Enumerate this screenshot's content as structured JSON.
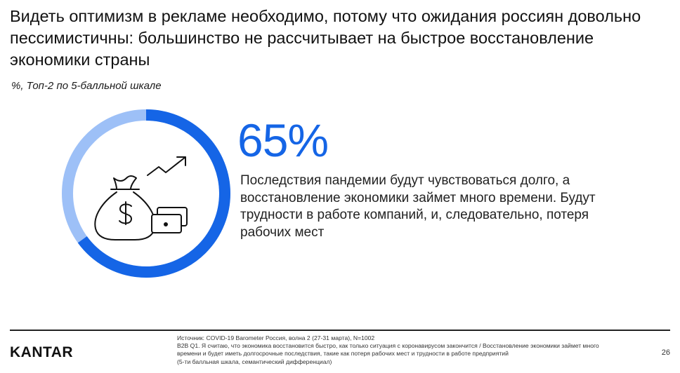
{
  "slide": {
    "title": "Видеть оптимизм в рекламе необходимо, потому что ожидания россиян довольно пессимистичны: большинство не рассчитывает на быстрое восстановление экономики страны",
    "subtitle": "%, Топ-2 по 5-балльной шкале",
    "stat": {
      "percent_label": "65%",
      "value": 65,
      "description": "Последствия пандемии будут чувствоваться долго, а восстановление экономики займет много времени. Будут трудности в работе компаний, и, следовательно, потеря рабочих мест"
    },
    "icon": "money-bag-with-growth-arrow-and-banknotes-icon"
  },
  "colors": {
    "accent": "#1565e6",
    "ring_remainder": "#9dc0f7",
    "icon_stroke": "#111111"
  },
  "footer": {
    "logo": "KANTAR",
    "source_lines": [
      "Источник: COVID-19 Barometer Россия, волна 2 (27-31 марта), N=1002",
      "B2B Q1. Я считаю, что экономика восстановится быстро, как только ситуация с коронавирусом закончится / Восстановление экономики займет много",
      "времени и будет иметь долгосрочные последствия, такие как потеря рабочих мест и трудности в работе предприятий",
      "(5-ти балльная шкала, семантический дифференциал)"
    ],
    "page_number": "26"
  }
}
